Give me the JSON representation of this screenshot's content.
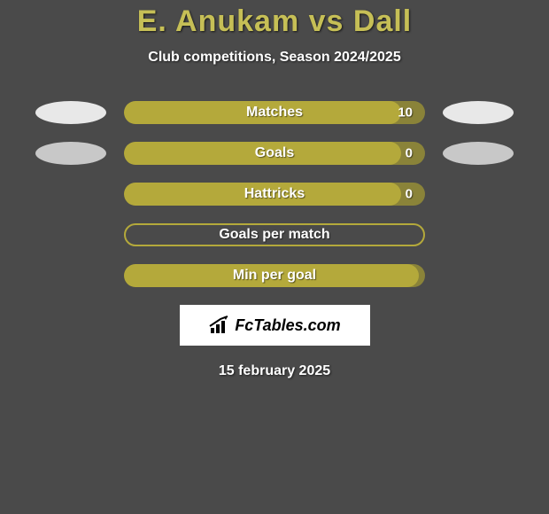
{
  "title": "E. Anukam vs Dall",
  "subtitle": "Club competitions, Season 2024/2025",
  "date": "15 february 2025",
  "colors": {
    "background": "#4a4a4a",
    "accent": "#c6bf56",
    "bar_fill": "#b4a93b",
    "bar_track": "#8a8339",
    "bar_unfilled_track": "#4a4a4a",
    "oval_light": "#e8e8e8",
    "oval_dark": "#c8c8c8",
    "text_white": "#ffffff",
    "logo_bg": "#ffffff",
    "logo_text": "#000000"
  },
  "logo": "FcTables.com",
  "stats": [
    {
      "label": "Matches",
      "value": "10",
      "fill_pct": 92,
      "show_value": true,
      "track_color": "#8a8339",
      "fill_color": "#b4a93b",
      "left_oval": "#e8e8e8",
      "right_oval": "#e8e8e8",
      "show_ovals": true
    },
    {
      "label": "Goals",
      "value": "0",
      "fill_pct": 92,
      "show_value": true,
      "track_color": "#8a8339",
      "fill_color": "#b4a93b",
      "left_oval": "#c8c8c8",
      "right_oval": "#c8c8c8",
      "show_ovals": true
    },
    {
      "label": "Hattricks",
      "value": "0",
      "fill_pct": 92,
      "show_value": true,
      "track_color": "#8a8339",
      "fill_color": "#b4a93b",
      "left_oval": null,
      "right_oval": null,
      "show_ovals": false
    },
    {
      "label": "Goals per match",
      "value": "",
      "fill_pct": 0,
      "show_value": false,
      "track_color": "#4a4a4a",
      "fill_color": "#b4a93b",
      "border_color": "#b4a93b",
      "left_oval": null,
      "right_oval": null,
      "show_ovals": false
    },
    {
      "label": "Min per goal",
      "value": "",
      "fill_pct": 98,
      "show_value": false,
      "track_color": "#8a8339",
      "fill_color": "#b4a93b",
      "left_oval": null,
      "right_oval": null,
      "show_ovals": false
    }
  ]
}
